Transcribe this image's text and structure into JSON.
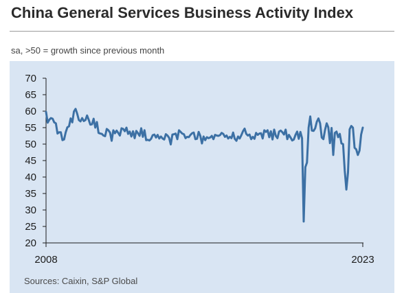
{
  "title": "China General Services Business Activity Index",
  "subtitle": "sa, >50 = growth since previous month",
  "source": "Sources: Caixin, S&P Global",
  "colors": {
    "line": "#3c70a4",
    "panel_bg": "#d9e5f3",
    "axis": "#1c1c1c"
  },
  "chart_data": {
    "type": "line",
    "title": "",
    "xlabel": "",
    "ylabel": "",
    "grid": false,
    "legend": "none",
    "ylim": [
      20,
      70
    ],
    "yticks": [
      20,
      25,
      30,
      35,
      40,
      45,
      50,
      55,
      60,
      65,
      70
    ],
    "xticks": [
      "2008",
      "2023"
    ],
    "series": [
      {
        "values": [
          59.8,
          56.5,
          57.4,
          57.9,
          57.7,
          56.6,
          56.3,
          53.2,
          53.6,
          53.6,
          51.2,
          51.4,
          53.6,
          55.1,
          55.4,
          57.8,
          56.6,
          59.9,
          60.7,
          59.2,
          57.3,
          56.9,
          57.9,
          57.0,
          57.3,
          58.7,
          57.4,
          55.9,
          56.0,
          57.7,
          55.0,
          56.7,
          53.4,
          53.2,
          53.1,
          52.6,
          52.4,
          54.6,
          54.2,
          53.5,
          51.0,
          54.2,
          53.3,
          54.1,
          53.4,
          52.6,
          54.8,
          54.6,
          53.9,
          55.0,
          53.1,
          53.8,
          52.3,
          53.9,
          51.8,
          54.0,
          53.3,
          52.5,
          54.8,
          52.2,
          54.2,
          51.2,
          51.3,
          51.1,
          51.6,
          52.7,
          52.9,
          52.0,
          52.8,
          51.7,
          52.3,
          51.7,
          51.4,
          53.0,
          52.6,
          51.9,
          49.9,
          52.9,
          53.0,
          53.2,
          51.5,
          54.2,
          53.7,
          53.2,
          53.0,
          51.8,
          52.2,
          52.1,
          52.8,
          53.3,
          53.5,
          51.5,
          51.6,
          53.7,
          52.5,
          50.2,
          52.3,
          51.2,
          52.1,
          51.8,
          52.0,
          52.5,
          51.5,
          52.8,
          52.6,
          52.5,
          52.7,
          53.4,
          53.1,
          52.2,
          52.6,
          51.7,
          52.2,
          51.8,
          53.5,
          51.6,
          51.0,
          52.3,
          51.7,
          52.7,
          53.9,
          54.7,
          53.1,
          52.6,
          52.9,
          51.5,
          52.2,
          51.6,
          53.4,
          52.8,
          53.2,
          53.3,
          51.7,
          54.2,
          53.7,
          54.2,
          52.1,
          53.9,
          51.4,
          54.4,
          52.5,
          51.8,
          53.8,
          54.1,
          53.6,
          52.9,
          54.4,
          51.5,
          52.8,
          52.0,
          51.1,
          51.4,
          52.8,
          53.8,
          51.6,
          53.7,
          51.8,
          26.5,
          43.0,
          44.4,
          55.0,
          58.4,
          54.1,
          54.0,
          54.8,
          56.8,
          57.8,
          56.3,
          52.0,
          51.5,
          54.3,
          56.3,
          55.1,
          50.3,
          54.9,
          46.7,
          53.4,
          53.8,
          52.1,
          53.1,
          50.2,
          50.0,
          42.0,
          36.2,
          41.4,
          54.5,
          55.5,
          55.0,
          48.9,
          48.4,
          46.7,
          48.0,
          52.9,
          55.0
        ]
      }
    ]
  }
}
